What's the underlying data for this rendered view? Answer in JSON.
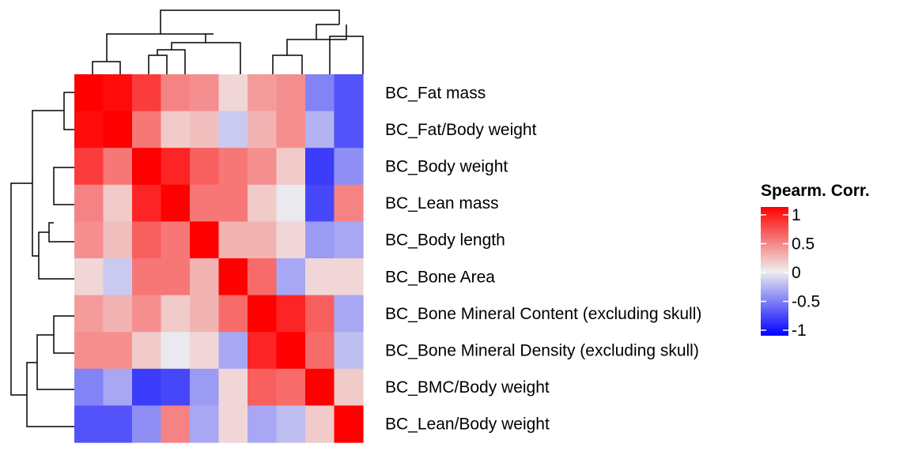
{
  "chart_data": {
    "type": "heatmap",
    "title": "",
    "rows": [
      "BC_Fat mass",
      "BC_Fat/Body weight",
      "BC_Body weight",
      "BC_Lean mass",
      "BC_Body length",
      "BC_Bone Area",
      "BC_Bone Mineral Content (excluding skull)",
      "BC_Bone Mineral Density (excluding skull)",
      "BC_BMC/Body weight",
      "BC_Lean/Body weight"
    ],
    "column_count": 10,
    "values": [
      [
        1.0,
        0.95,
        0.75,
        0.45,
        0.4,
        0.1,
        0.35,
        0.4,
        -0.45,
        -0.65
      ],
      [
        0.95,
        1.0,
        0.5,
        0.15,
        0.2,
        -0.15,
        0.25,
        0.4,
        -0.25,
        -0.65
      ],
      [
        0.75,
        0.5,
        1.0,
        0.85,
        0.6,
        0.5,
        0.4,
        0.15,
        -0.75,
        -0.4
      ],
      [
        0.45,
        0.15,
        0.85,
        1.0,
        0.5,
        0.5,
        0.15,
        -0.02,
        -0.7,
        0.45
      ],
      [
        0.4,
        0.2,
        0.6,
        0.5,
        1.0,
        0.25,
        0.25,
        0.1,
        -0.35,
        -0.3
      ],
      [
        0.1,
        -0.15,
        0.5,
        0.5,
        0.25,
        1.0,
        0.55,
        -0.3,
        0.1,
        0.1
      ],
      [
        0.35,
        0.25,
        0.4,
        0.15,
        0.25,
        0.55,
        1.0,
        0.85,
        0.6,
        -0.3
      ],
      [
        0.4,
        0.4,
        0.15,
        -0.02,
        0.1,
        -0.3,
        0.85,
        1.0,
        0.55,
        -0.2
      ],
      [
        -0.45,
        -0.3,
        -0.75,
        -0.7,
        -0.35,
        0.1,
        0.6,
        0.55,
        1.0,
        0.15
      ],
      [
        -0.65,
        -0.65,
        -0.4,
        0.45,
        -0.3,
        0.1,
        -0.3,
        -0.2,
        0.15,
        1.0
      ]
    ],
    "color_scale": {
      "min": -1,
      "max": 1,
      "low": "#0000ff",
      "mid": "#eeeeee",
      "high": "#ff0000"
    },
    "legend": {
      "title": "Spearm. Corr.",
      "ticks": [
        1,
        0.5,
        0,
        -0.5,
        -1
      ],
      "tick_labels": [
        "1",
        "0.5",
        "0",
        "-0.5",
        "-1"
      ],
      "position": "right"
    },
    "row_dendrogram": true,
    "column_dendrogram": true
  }
}
